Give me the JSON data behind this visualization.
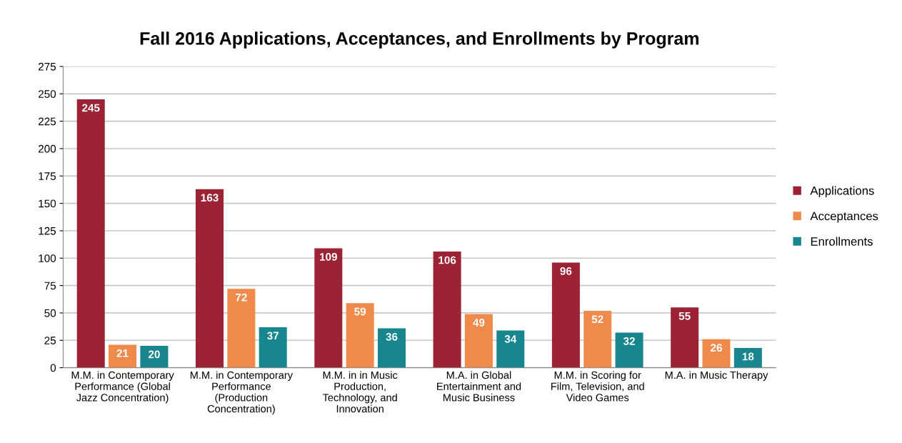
{
  "chart_data": {
    "type": "bar",
    "title": "Fall 2016 Applications, Acceptances, and Enrollments by Program",
    "categories": [
      "M.M. in Contemporary\nPerformance (Global\nJazz Concentration)",
      "M.M. in Contemporary\nPerformance\n(Production\nConcentration)",
      "M.M. in in Music\nProduction,\nTechnology, and\nInnovation",
      "M.A. in Global\nEntertainment and\nMusic Business",
      "M.M. in Scoring for\nFilm, Television, and\nVideo Games",
      "M.A. in Music Therapy"
    ],
    "series": [
      {
        "name": "Applications",
        "color": "#9b2335",
        "values": [
          245,
          163,
          109,
          106,
          96,
          55
        ]
      },
      {
        "name": "Acceptances",
        "color": "#ef8a4c",
        "values": [
          21,
          72,
          59,
          49,
          52,
          26
        ]
      },
      {
        "name": "Enrollments",
        "color": "#17868f",
        "values": [
          20,
          37,
          36,
          34,
          32,
          18
        ]
      }
    ],
    "ylim": [
      0,
      275
    ],
    "yticks": [
      0,
      25,
      50,
      75,
      100,
      125,
      150,
      175,
      200,
      225,
      250,
      275
    ],
    "grid": "y",
    "legend": "right",
    "data_labels": true
  }
}
